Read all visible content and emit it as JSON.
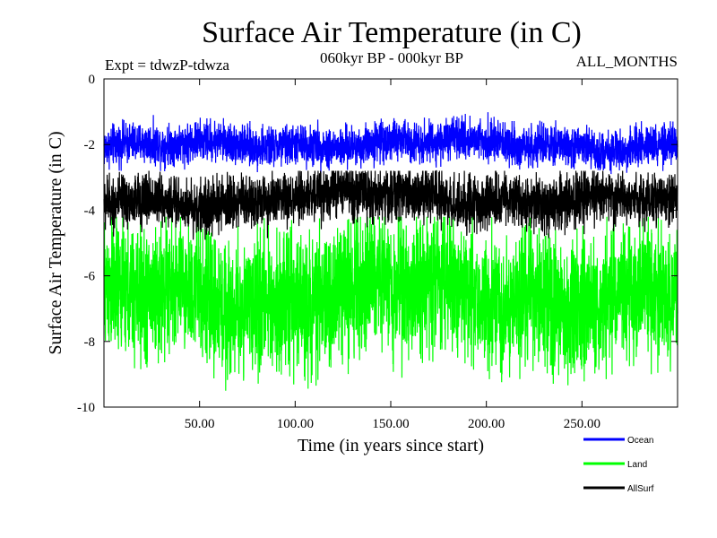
{
  "chart_data": {
    "type": "line",
    "title": "Surface Air Temperature (in C)",
    "subtitle": "060kyr BP - 000kyr BP",
    "experiment_label": "Expt = tdwzP-tdwza",
    "months_label": "ALL_MONTHS",
    "xlabel": "Time (in years since start)",
    "ylabel": "Surface Air Temperature (in C)",
    "xlim": [
      0,
      300
    ],
    "ylim": [
      -10,
      0
    ],
    "x_ticks": [
      50,
      100,
      150,
      200,
      250
    ],
    "x_tick_labels": [
      "50.00",
      "100.00",
      "150.00",
      "200.00",
      "250.00"
    ],
    "y_ticks": [
      0,
      -2,
      -4,
      -6,
      -8,
      -10
    ],
    "y_tick_labels": [
      "0",
      "-2",
      "-4",
      "-6",
      "-8",
      "-10"
    ],
    "legend_position": "bottom-right",
    "series": [
      {
        "name": "Ocean",
        "color": "#0000ff",
        "mean": -2.1,
        "trend": 0.15,
        "amplitude": 0.45,
        "min": -2.9,
        "max": -1.0
      },
      {
        "name": "Land",
        "color": "#00ff00",
        "mean": -6.8,
        "trend": 0.3,
        "amplitude": 1.5,
        "min": -9.5,
        "max": -4.2
      },
      {
        "name": "AllSurf",
        "color": "#000000",
        "mean": -3.8,
        "trend": 0.2,
        "amplitude": 0.6,
        "min": -4.9,
        "max": -2.8
      }
    ],
    "legend_labels": [
      "Ocean",
      "Land",
      "AllSurf"
    ]
  }
}
